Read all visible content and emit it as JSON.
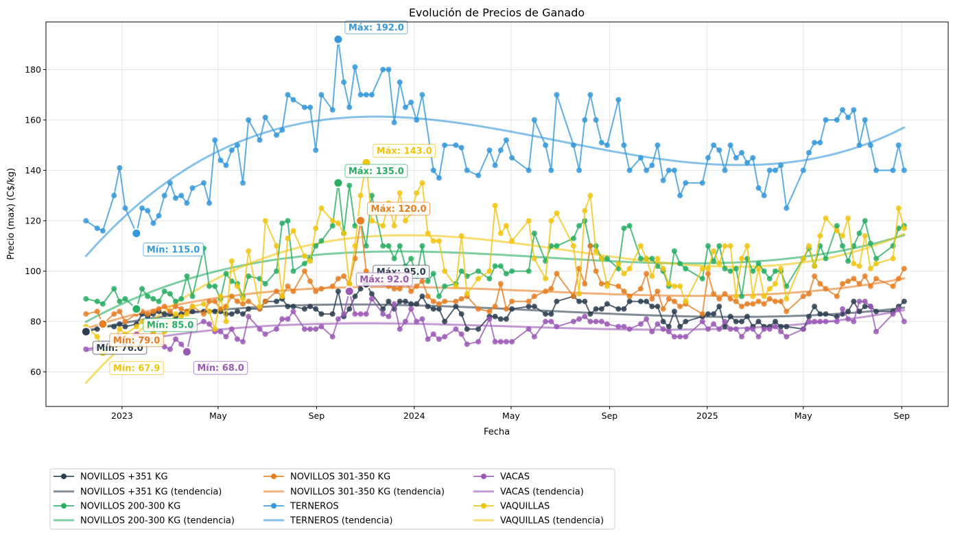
{
  "chart_data": {
    "type": "line",
    "title": "Evolución de Precios de Ganado",
    "xlabel": "Fecha",
    "ylabel": "Precio (max) (C$/kg)",
    "xlim": [
      "2022-09-28",
      "2025-10-29"
    ],
    "ylim": [
      46.3,
      198.9
    ],
    "grid": true,
    "legend_position": "below-left",
    "x_ticks": [
      {
        "date": "2023-01-01",
        "label": "2023"
      },
      {
        "date": "2023-05-01",
        "label": "May"
      },
      {
        "date": "2023-09-01",
        "label": "Sep"
      },
      {
        "date": "2024-01-01",
        "label": "2024"
      },
      {
        "date": "2024-05-01",
        "label": "May"
      },
      {
        "date": "2024-09-01",
        "label": "Sep"
      },
      {
        "date": "2025-01-01",
        "label": "2025"
      },
      {
        "date": "2025-05-01",
        "label": "May"
      },
      {
        "date": "2025-09-01",
        "label": "Sep"
      }
    ],
    "y_ticks": [
      60,
      80,
      100,
      120,
      140,
      160,
      180
    ],
    "dates": [
      "2022-11-17",
      "2022-11-24",
      "2022-12-01",
      "2022-12-08",
      "2022-12-15",
      "2022-12-22",
      "2022-12-29",
      "2023-01-05",
      "2023-01-12",
      "2023-01-19",
      "2023-01-26",
      "2023-02-02",
      "2023-02-09",
      "2023-02-16",
      "2023-02-23",
      "2023-03-02",
      "2023-03-09",
      "2023-03-16",
      "2023-03-23",
      "2023-03-30",
      "2023-04-06",
      "2023-04-13",
      "2023-04-20",
      "2023-04-27",
      "2023-05-04",
      "2023-05-11",
      "2023-05-18",
      "2023-05-25",
      "2023-06-01",
      "2023-06-08",
      "2023-06-15",
      "2023-06-22",
      "2023-06-29",
      "2023-07-06",
      "2023-07-13",
      "2023-07-20",
      "2023-07-27",
      "2023-08-03",
      "2023-08-10",
      "2023-08-17",
      "2023-08-24",
      "2023-08-31",
      "2023-09-07",
      "2023-09-14",
      "2023-09-21",
      "2023-09-28",
      "2023-10-05",
      "2023-10-12",
      "2023-10-19",
      "2023-10-26",
      "2023-11-02",
      "2023-11-09",
      "2023-11-16",
      "2023-11-23",
      "2023-11-30",
      "2023-12-07",
      "2023-12-14",
      "2023-12-21",
      "2023-12-28",
      "2024-01-04",
      "2024-01-11",
      "2024-01-18",
      "2024-01-25",
      "2024-02-01",
      "2024-02-08",
      "2024-02-15",
      "2024-02-22",
      "2024-02-29",
      "2024-03-07",
      "2024-03-14",
      "2024-03-21",
      "2024-03-28",
      "2024-04-04",
      "2024-04-11",
      "2024-04-18",
      "2024-04-25",
      "2024-05-02",
      "2024-05-09",
      "2024-05-16",
      "2024-05-23",
      "2024-05-30",
      "2024-06-06",
      "2024-06-13",
      "2024-06-20",
      "2024-06-27",
      "2024-07-04",
      "2024-07-11",
      "2024-07-18",
      "2024-07-25",
      "2024-08-01",
      "2024-08-08",
      "2024-08-15",
      "2024-08-22",
      "2024-08-29",
      "2024-09-05",
      "2024-09-12",
      "2024-09-19",
      "2024-09-26",
      "2024-10-03",
      "2024-10-10",
      "2024-10-17",
      "2024-10-24",
      "2024-10-31",
      "2024-11-07",
      "2024-11-14",
      "2024-11-21",
      "2024-11-28",
      "2024-12-05",
      "2024-12-12",
      "2024-12-19",
      "2024-12-26",
      "2025-01-02",
      "2025-01-09",
      "2025-01-16",
      "2025-01-23",
      "2025-01-30",
      "2025-02-06",
      "2025-02-13",
      "2025-02-20",
      "2025-02-27",
      "2025-03-06",
      "2025-03-13",
      "2025-03-20",
      "2025-03-27",
      "2025-04-03",
      "2025-04-10",
      "2025-04-17",
      "2025-04-24",
      "2025-05-01",
      "2025-05-08",
      "2025-05-15",
      "2025-05-22",
      "2025-05-29",
      "2025-06-05",
      "2025-06-12",
      "2025-06-19",
      "2025-06-26",
      "2025-07-03",
      "2025-07-10",
      "2025-07-17",
      "2025-07-24",
      "2025-07-31",
      "2025-08-07",
      "2025-08-14",
      "2025-08-21",
      "2025-08-28",
      "2025-09-04"
    ],
    "series": [
      {
        "name": "NOVILLOS +351 KG",
        "trend_name": "NOVILLOS +351 KG (tendencia)",
        "color": "#2c3e50",
        "min": {
          "value": 76.0,
          "label": "Mín: 76.0"
        },
        "max": {
          "value": 95.0,
          "label": "Máx: 95.0"
        },
        "values": [
          76,
          null,
          77,
          78,
          null,
          78,
          79,
          78,
          null,
          79,
          83,
          82,
          83,
          84,
          83,
          83,
          82,
          83,
          84,
          84,
          null,
          84,
          84,
          84,
          84,
          83,
          83,
          84,
          83,
          85,
          null,
          85,
          88,
          null,
          88,
          89,
          86,
          86,
          null,
          85,
          86,
          85,
          83,
          null,
          83,
          92,
          82,
          85,
          90,
          93,
          95,
          91,
          null,
          85,
          88,
          85,
          88,
          88,
          87,
          87,
          90,
          86,
          85,
          85,
          80,
          null,
          86,
          83,
          77,
          null,
          77,
          null,
          82,
          82,
          81,
          81,
          85,
          null,
          null,
          86,
          86,
          null,
          83,
          83,
          88,
          null,
          null,
          90,
          88,
          88,
          83,
          85,
          85,
          87,
          null,
          85,
          85,
          88,
          null,
          88,
          88,
          86,
          86,
          80,
          78,
          84,
          78,
          80,
          null,
          null,
          82,
          83,
          83,
          86,
          78,
          82,
          80,
          80,
          82,
          78,
          80,
          78,
          78,
          80,
          78,
          78,
          null,
          null,
          77,
          82,
          86,
          83,
          83,
          null,
          82,
          83,
          84,
          88,
          84,
          86,
          86,
          84,
          null,
          null,
          84,
          86,
          88
        ]
      },
      {
        "name": "NOVILLOS 200-300 KG",
        "trend_name": "NOVILLOS 200-300 KG (tendencia)",
        "color": "#27ae60",
        "min": {
          "value": 85.0,
          "label": "Mín: 85.0"
        },
        "max": {
          "value": 135.0,
          "label": "Máx: 135.0"
        },
        "values": [
          89,
          null,
          88,
          87,
          null,
          93,
          88,
          89,
          null,
          85,
          93,
          90,
          89,
          88,
          92,
          91,
          88,
          89,
          98,
          90,
          null,
          109,
          94,
          94,
          89,
          99,
          96,
          95,
          90,
          98,
          null,
          97,
          95,
          null,
          100,
          119,
          120,
          100,
          null,
          103,
          105,
          110,
          112,
          null,
          118,
          135,
          115,
          134,
          118,
          120,
          110,
          130,
          null,
          110,
          110,
          105,
          110,
          102,
          105,
          98,
          110,
          96,
          99,
          90,
          94,
          null,
          95,
          100,
          98,
          null,
          100,
          null,
          97,
          102,
          102,
          99,
          100,
          null,
          null,
          100,
          115,
          null,
          104,
          110,
          110,
          null,
          null,
          113,
          118,
          120,
          110,
          110,
          105,
          105,
          null,
          101,
          117,
          118,
          null,
          105,
          105,
          105,
          102,
          100,
          94,
          108,
          103,
          101,
          null,
          null,
          97,
          110,
          104,
          110,
          101,
          100,
          101,
          90,
          105,
          100,
          103,
          100,
          97,
          100,
          100,
          94,
          null,
          null,
          105,
          109,
          102,
          110,
          105,
          null,
          118,
          110,
          104,
          110,
          115,
          120,
          111,
          105,
          null,
          null,
          110,
          117,
          118
        ]
      },
      {
        "name": "NOVILLOS 301-350 KG",
        "trend_name": "NOVILLOS 301-350 KG (tendencia)",
        "color": "#e67e22",
        "min": {
          "value": 79.0,
          "label": "Mín: 79.0"
        },
        "max": {
          "value": 120.0,
          "label": "Máx: 120.0"
        },
        "values": [
          83,
          null,
          84,
          79,
          null,
          83,
          84,
          80,
          null,
          83,
          84,
          83,
          84,
          85,
          86,
          84,
          86,
          85,
          84,
          86,
          null,
          83,
          88,
          88,
          85,
          86,
          90,
          88,
          87,
          88,
          null,
          85,
          88,
          null,
          92,
          90,
          94,
          92,
          null,
          100,
          96,
          92,
          93,
          null,
          94,
          97,
          98,
          95,
          105,
          120,
          100,
          97,
          null,
          95,
          94,
          93,
          93,
          96,
          92,
          94,
          96,
          90,
          88,
          87,
          88,
          null,
          88,
          89,
          90,
          null,
          85,
          null,
          84,
          86,
          95,
          85,
          88,
          null,
          null,
          88,
          90,
          null,
          92,
          93,
          99,
          null,
          null,
          90,
          101,
          95,
          110,
          100,
          95,
          95,
          null,
          94,
          92,
          90,
          null,
          93,
          99,
          89,
          92,
          85,
          89,
          88,
          86,
          87,
          null,
          null,
          83,
          99,
          91,
          89,
          91,
          89,
          88,
          86,
          87,
          87,
          88,
          87,
          89,
          88,
          88,
          84,
          null,
          null,
          90,
          91,
          98,
          95,
          93,
          null,
          90,
          95,
          96,
          97,
          95,
          98,
          94,
          97,
          null,
          null,
          94,
          97,
          101
        ]
      },
      {
        "name": "TERNEROS",
        "trend_name": "TERNEROS (tendencia)",
        "color": "#3498db",
        "min": {
          "value": 115.0,
          "label": "Mín: 115.0"
        },
        "max": {
          "value": 192.0,
          "label": "Máx: 192.0"
        },
        "values": [
          120,
          null,
          117,
          116,
          null,
          130,
          141,
          125,
          null,
          115,
          125,
          124,
          119,
          122,
          130,
          135,
          129,
          130,
          127,
          133,
          null,
          135,
          127,
          152,
          144,
          142,
          148,
          150,
          135,
          160,
          null,
          152,
          161,
          null,
          154,
          156,
          170,
          168,
          null,
          165,
          165,
          148,
          170,
          null,
          164,
          192,
          175,
          165,
          181,
          170,
          170,
          170,
          null,
          180,
          180,
          159,
          175,
          165,
          167,
          160,
          170,
          null,
          140,
          137,
          150,
          null,
          150,
          149,
          140,
          null,
          138,
          null,
          148,
          142,
          148,
          152,
          145,
          null,
          null,
          140,
          160,
          null,
          150,
          140,
          170,
          null,
          null,
          150,
          140,
          160,
          170,
          160,
          151,
          150,
          null,
          168,
          150,
          140,
          null,
          145,
          140,
          142,
          150,
          136,
          140,
          140,
          130,
          135,
          null,
          null,
          135,
          145,
          150,
          148,
          140,
          150,
          145,
          147,
          143,
          145,
          133,
          130,
          140,
          140,
          142,
          125,
          null,
          null,
          140,
          147,
          151,
          151,
          160,
          null,
          160,
          164,
          161,
          164,
          150,
          160,
          150,
          140,
          null,
          null,
          140,
          150,
          140
        ]
      },
      {
        "name": "VACAS",
        "trend_name": "VACAS (tendencia)",
        "color": "#9b59b6",
        "min": {
          "value": 68.0,
          "label": "Mín: 68.0"
        },
        "max": {
          "value": 92.0,
          "label": "Máx: 92.0"
        },
        "values": [
          69,
          null,
          70,
          71,
          null,
          72,
          74,
          73,
          null,
          75,
          74,
          73,
          76,
          72,
          70,
          69,
          73,
          71,
          68,
          78,
          null,
          80,
          79,
          76,
          76,
          74,
          77,
          73,
          72,
          82,
          null,
          77,
          75,
          null,
          77,
          81,
          81,
          84,
          null,
          77,
          77,
          77,
          78,
          null,
          74,
          81,
          83,
          92,
          83,
          83,
          83,
          89,
          null,
          83,
          82,
          87,
          77,
          80,
          85,
          80,
          81,
          73,
          75,
          73,
          74,
          null,
          77,
          75,
          71,
          null,
          72,
          null,
          81,
          72,
          72,
          72,
          72,
          null,
          null,
          77,
          74,
          null,
          80,
          80,
          78,
          null,
          null,
          80,
          81,
          82,
          80,
          80,
          80,
          79,
          null,
          78,
          78,
          77,
          null,
          79,
          81,
          76,
          79,
          77,
          76,
          74,
          74,
          74,
          null,
          null,
          80,
          77,
          79,
          77,
          80,
          77,
          77,
          74,
          77,
          77,
          74,
          77,
          77,
          78,
          76,
          74,
          null,
          null,
          77,
          80,
          80,
          80,
          80,
          null,
          80,
          85,
          81,
          80,
          88,
          88,
          86,
          76,
          null,
          null,
          83,
          85,
          80
        ]
      },
      {
        "name": "VAQUILLAS",
        "trend_name": "VAQUILLAS (tendencia)",
        "color": "#f1c40f",
        "min": {
          "value": 67.9,
          "label": "Mín: 67.9"
        },
        "max": {
          "value": 143.0,
          "label": "Máx: 143.0"
        },
        "values": [
          78,
          null,
          74,
          67.9,
          null,
          72,
          77,
          75,
          null,
          78,
          80,
          78,
          76,
          71,
          76,
          80,
          83,
          82,
          83,
          86,
          null,
          87,
          84,
          77,
          90,
          80,
          104,
          94,
          89,
          108,
          null,
          86,
          120,
          null,
          110,
          90,
          113,
          116,
          null,
          106,
          104,
          117,
          125,
          null,
          120,
          119,
          115,
          95,
          110,
          130,
          143,
          120,
          null,
          118,
          127,
          118,
          131,
          120,
          123,
          131,
          135,
          115,
          112,
          112,
          100,
          null,
          94,
          114,
          91,
          null,
          97,
          null,
          100,
          126,
          115,
          118,
          112,
          null,
          null,
          120,
          105,
          null,
          97,
          120,
          123,
          null,
          null,
          110,
          91,
          124,
          130,
          108,
          105,
          94,
          null,
          103,
          99,
          101,
          null,
          110,
          105,
          98,
          105,
          101,
          95,
          94,
          94,
          88,
          null,
          null,
          101,
          101,
          108,
          103,
          110,
          110,
          90,
          105,
          110,
          90,
          101,
          90,
          93,
          95,
          101,
          89,
          null,
          null,
          105,
          110,
          102,
          114,
          121,
          null,
          116,
          114,
          121,
          103,
          102,
          114,
          101,
          103,
          null,
          null,
          105,
          125,
          117
        ]
      }
    ]
  }
}
